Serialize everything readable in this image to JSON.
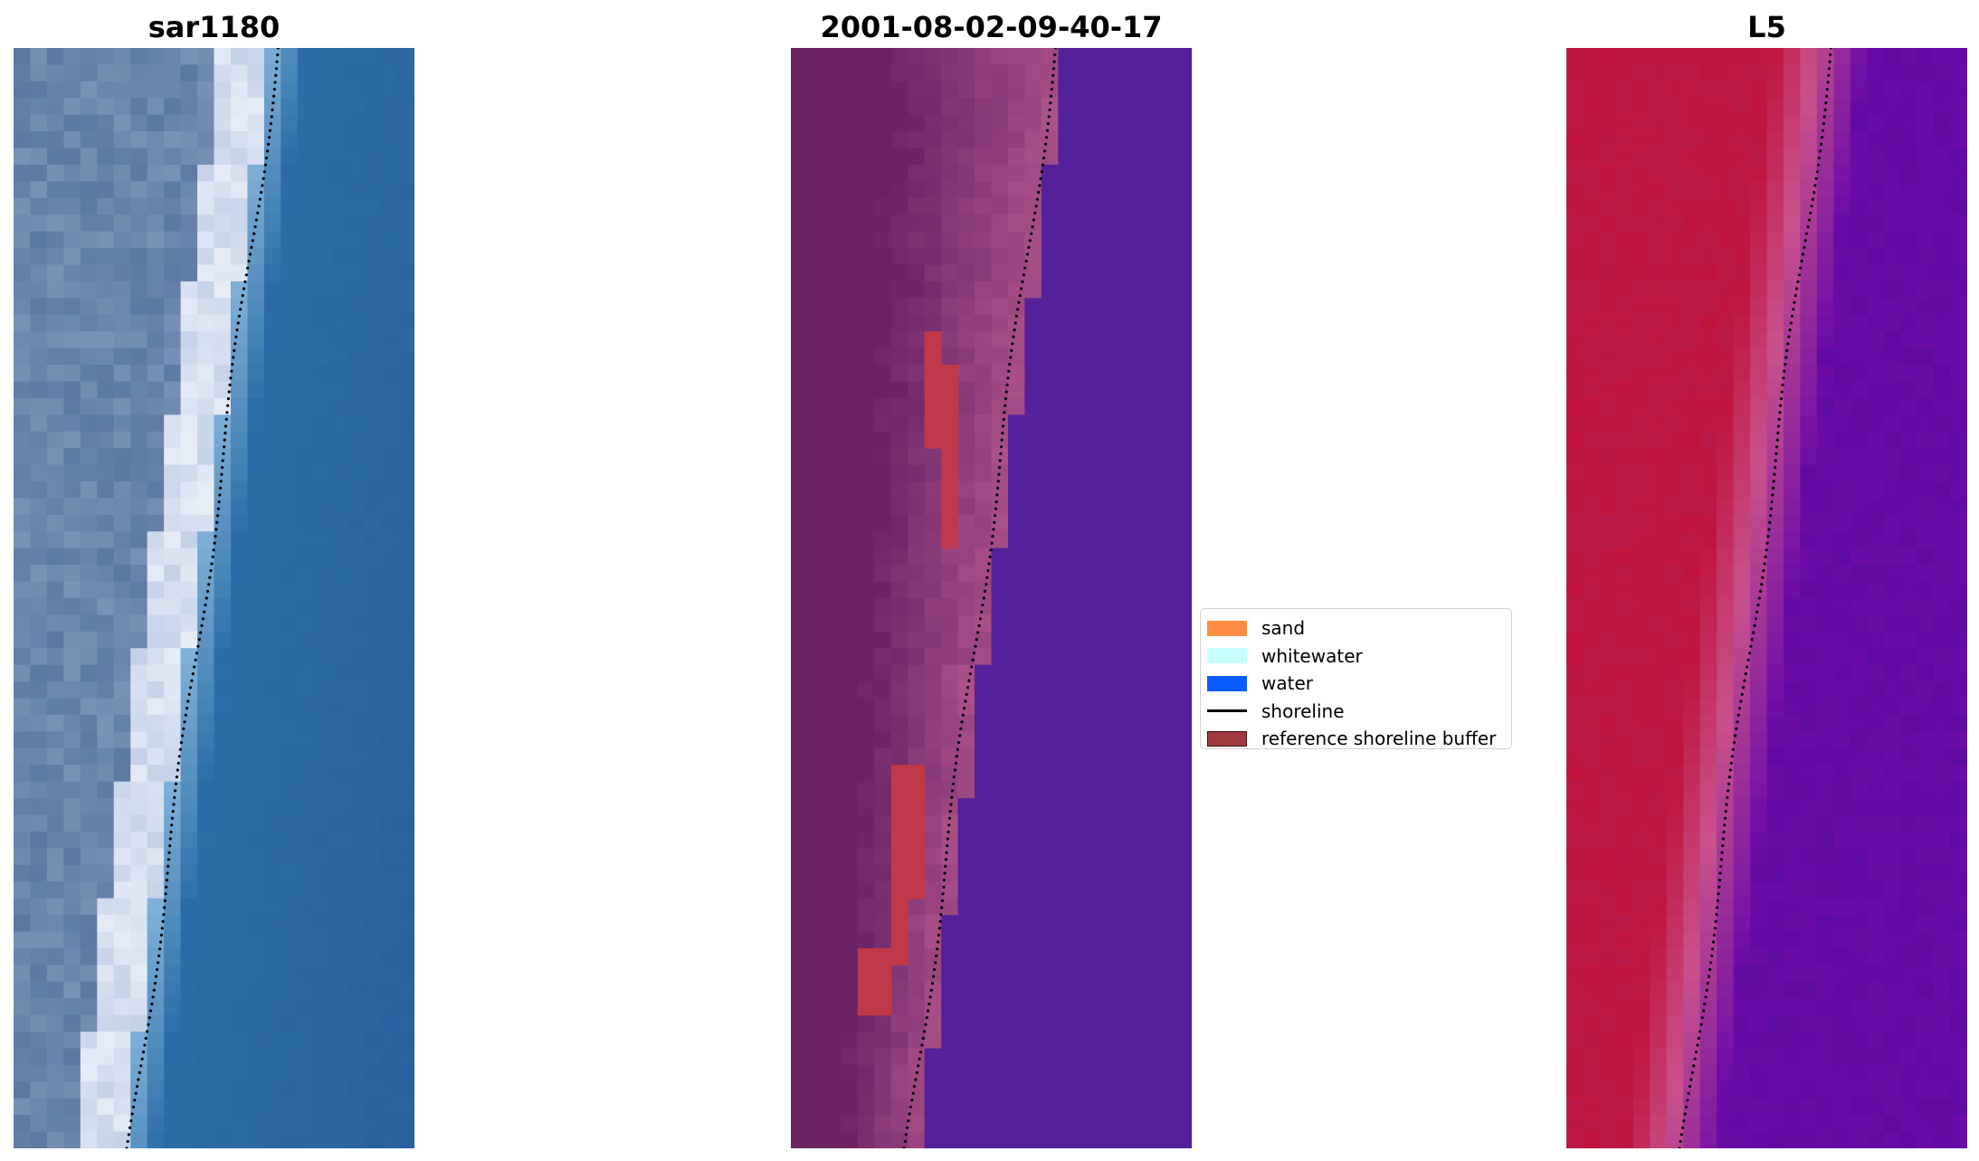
{
  "panels": [
    {
      "id": "rgb",
      "title": "sar1180"
    },
    {
      "id": "classified",
      "title": "2001-08-02-09-40-17"
    },
    {
      "id": "index",
      "title": "L5"
    }
  ],
  "legend": {
    "items": [
      {
        "label": "sand",
        "color": "#ff8c42",
        "kind": "patch"
      },
      {
        "label": "whitewater",
        "color": "#c8ffff",
        "kind": "patch"
      },
      {
        "label": "water",
        "color": "#0a5cff",
        "kind": "patch"
      },
      {
        "label": "shoreline",
        "color": "#000000",
        "kind": "line"
      },
      {
        "label": "reference shoreline buffer",
        "color": "#a13a3f",
        "kind": "patch",
        "border": "#3c0f10"
      }
    ]
  },
  "colors": {
    "rgb_water": "#2c6fa8",
    "rgb_beach": "#e8eef8",
    "rgb_land": "#5a78a0",
    "classified_water": "#55219a",
    "classified_land_dark": "#6b2366",
    "classified_land_light": "#b3578f",
    "classified_buffer": "#c0394a",
    "index_land": "#c0143c",
    "index_transition": "#c8508c",
    "index_water": "#6c0ca8",
    "shoreline": "#000000"
  }
}
